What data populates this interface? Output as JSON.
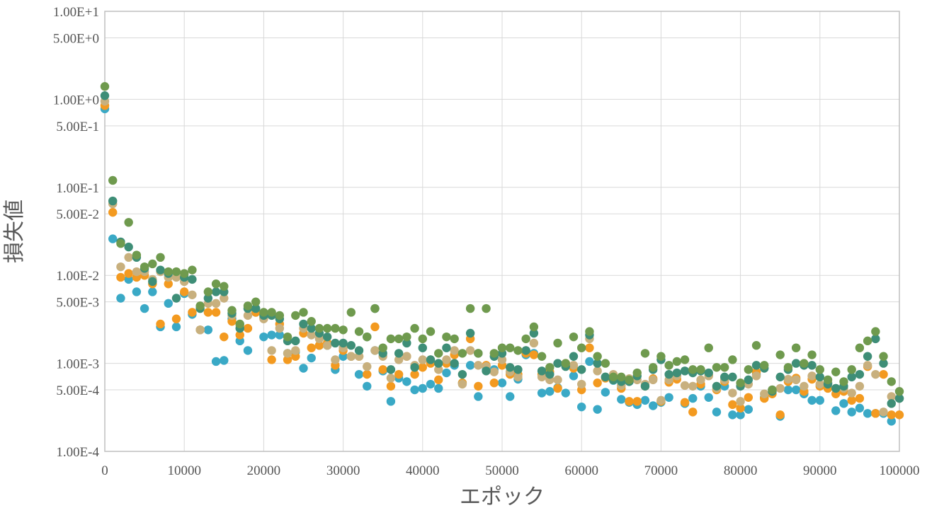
{
  "chart_data": {
    "type": "scatter",
    "xlabel": "エポック",
    "ylabel": "損失値",
    "xlim": [
      0,
      100000
    ],
    "ylim": [
      0.0001,
      10
    ],
    "yscale": "log",
    "grid": true,
    "legend": "none",
    "x_ticks": [
      "0",
      "10000",
      "20000",
      "30000",
      "40000",
      "50000",
      "60000",
      "70000",
      "80000",
      "90000",
      "100000"
    ],
    "y_ticks": [
      {
        "value": 10,
        "label": "1.00E+1"
      },
      {
        "value": 5,
        "label": "5.00E+0"
      },
      {
        "value": 1,
        "label": "1.00E+0"
      },
      {
        "value": 0.5,
        "label": "5.00E-1"
      },
      {
        "value": 0.1,
        "label": "1.00E-1"
      },
      {
        "value": 0.05,
        "label": "5.00E-2"
      },
      {
        "value": 0.01,
        "label": "1.00E-2"
      },
      {
        "value": 0.005,
        "label": "5.00E-3"
      },
      {
        "value": 0.001,
        "label": "1.00E-3"
      },
      {
        "value": 0.0005,
        "label": "5.00E-4"
      },
      {
        "value": 0.0001,
        "label": "1.00E-4"
      }
    ],
    "x": [
      0,
      1000,
      2000,
      3000,
      4000,
      5000,
      6000,
      7000,
      8000,
      9000,
      10000,
      11000,
      12000,
      13000,
      14000,
      15000,
      16000,
      17000,
      18000,
      19000,
      20000,
      21000,
      22000,
      23000,
      24000,
      25000,
      26000,
      27000,
      28000,
      29000,
      30000,
      31000,
      32000,
      33000,
      34000,
      35000,
      36000,
      37000,
      38000,
      39000,
      40000,
      41000,
      42000,
      43000,
      44000,
      45000,
      46000,
      47000,
      48000,
      49000,
      50000,
      51000,
      52000,
      53000,
      54000,
      55000,
      56000,
      57000,
      58000,
      59000,
      60000,
      61000,
      62000,
      63000,
      64000,
      65000,
      66000,
      67000,
      68000,
      69000,
      70000,
      71000,
      72000,
      73000,
      74000,
      75000,
      76000,
      77000,
      78000,
      79000,
      80000,
      81000,
      82000,
      83000,
      84000,
      85000,
      86000,
      87000,
      88000,
      89000,
      90000,
      91000,
      92000,
      93000,
      94000,
      95000,
      96000,
      97000,
      98000,
      99000,
      100000
    ],
    "series": [
      {
        "color": "#3aa9c6",
        "values": [
          0.78,
          0.026,
          0.0055,
          0.009,
          0.0065,
          0.0042,
          0.0065,
          0.0026,
          0.0048,
          0.0026,
          0.0062,
          0.0036,
          0.0024,
          0.0024,
          0.00105,
          0.00108,
          0.0032,
          0.0018,
          0.0014,
          0.0038,
          0.002,
          0.0021,
          0.0021,
          0.0013,
          0.00135,
          0.00088,
          0.00115,
          0.0016,
          0.0016,
          0.00085,
          0.0012,
          0.0012,
          0.00075,
          0.00055,
          0.0014,
          0.00082,
          0.00037,
          0.00068,
          0.00062,
          0.0005,
          0.00052,
          0.00058,
          0.00052,
          0.00078,
          0.00095,
          0.0006,
          0.00095,
          0.00042,
          0.00085,
          0.00085,
          0.0006,
          0.00042,
          0.00066,
          0.00125,
          0.0013,
          0.00046,
          0.00048,
          0.00053,
          0.00046,
          0.00072,
          0.00032,
          0.00105,
          0.0003,
          0.00047,
          0.00064,
          0.00039,
          0.00036,
          0.00034,
          0.00038,
          0.00033,
          0.00036,
          0.00041,
          0.00075,
          0.00035,
          0.0004,
          0.00055,
          0.00041,
          0.00028,
          0.00055,
          0.00026,
          0.00026,
          0.0003,
          0.00075,
          0.00041,
          0.0005,
          0.00025,
          0.0005,
          0.0005,
          0.00045,
          0.00038,
          0.00038,
          0.0006,
          0.00029,
          0.00035,
          0.00028,
          0.00031,
          0.00027,
          0.00027,
          0.00027,
          0.00022,
          0.0004
        ]
      },
      {
        "color": "#f39a20",
        "values": [
          0.85,
          0.052,
          0.0095,
          0.0105,
          0.0095,
          0.01,
          0.008,
          0.0028,
          0.008,
          0.0032,
          0.0065,
          0.0038,
          0.0024,
          0.0038,
          0.0038,
          0.002,
          0.003,
          0.0021,
          0.0025,
          0.0038,
          0.0033,
          0.0011,
          0.0028,
          0.0011,
          0.0012,
          0.0022,
          0.0015,
          0.0016,
          0.0017,
          0.00095,
          0.0014,
          0.0012,
          0.0012,
          0.00075,
          0.0026,
          0.00085,
          0.00055,
          0.00075,
          0.0012,
          0.00075,
          0.0009,
          0.001,
          0.00065,
          0.001,
          0.00125,
          0.0006,
          0.0019,
          0.00055,
          0.00095,
          0.0006,
          0.00095,
          0.00075,
          0.00075,
          0.0013,
          0.00125,
          0.00075,
          0.0008,
          0.00052,
          0.001,
          0.00088,
          0.0005,
          0.0015,
          0.0006,
          0.00068,
          0.00065,
          0.00052,
          0.00037,
          0.00037,
          0.00055,
          0.00067,
          0.00037,
          0.00061,
          0.00066,
          0.00036,
          0.00028,
          0.00058,
          0.00073,
          0.0005,
          0.00062,
          0.00034,
          0.00031,
          0.00041,
          0.0008,
          0.0004,
          0.00045,
          0.00026,
          0.00062,
          0.00068,
          0.00048,
          0.00066,
          0.00055,
          0.00052,
          0.00045,
          0.00048,
          0.00038,
          0.0004,
          0.00092,
          0.00027,
          0.00075,
          0.00026,
          0.00026
        ]
      },
      {
        "color": "#c8b07e",
        "values": [
          0.95,
          0.065,
          0.0125,
          0.016,
          0.011,
          0.011,
          0.009,
          0.011,
          0.0095,
          0.0095,
          0.0085,
          0.006,
          0.0024,
          0.0048,
          0.0048,
          0.0055,
          0.0035,
          0.0027,
          0.0035,
          0.0042,
          0.0032,
          0.0014,
          0.0025,
          0.0013,
          0.0014,
          0.0025,
          0.0021,
          0.0019,
          0.0016,
          0.0011,
          0.0015,
          0.0012,
          0.0012,
          0.00092,
          0.0014,
          0.0012,
          0.00068,
          0.0011,
          0.0012,
          0.00095,
          0.0011,
          0.0011,
          0.00085,
          0.0011,
          0.0014,
          0.00058,
          0.0014,
          0.00095,
          0.00092,
          0.0008,
          0.0011,
          0.0008,
          0.0007,
          0.0014,
          0.0017,
          0.0007,
          0.00065,
          0.00065,
          0.00095,
          0.00095,
          0.00058,
          0.0019,
          0.00082,
          0.0007,
          0.00075,
          0.00056,
          0.00067,
          0.00065,
          0.00058,
          0.00065,
          0.00038,
          0.00065,
          0.00072,
          0.00056,
          0.00055,
          0.00065,
          0.00072,
          0.00052,
          0.00065,
          0.00046,
          0.00037,
          0.00058,
          0.00072,
          0.00045,
          0.0005,
          0.00052,
          0.00066,
          0.00065,
          0.00055,
          0.00072,
          0.00058,
          0.0006,
          0.00052,
          0.00052,
          0.00046,
          0.00055,
          0.00095,
          0.00075,
          0.00028,
          0.00042,
          0.0004
        ]
      },
      {
        "color": "#3e8e77",
        "values": [
          1.1,
          0.07,
          0.024,
          0.021,
          0.016,
          0.012,
          0.0085,
          0.0115,
          0.0105,
          0.0055,
          0.0095,
          0.009,
          0.0042,
          0.0055,
          0.0065,
          0.0065,
          0.0037,
          0.0025,
          0.0042,
          0.0042,
          0.0035,
          0.0035,
          0.0032,
          0.0018,
          0.0018,
          0.0028,
          0.0025,
          0.0022,
          0.002,
          0.0017,
          0.0017,
          0.0016,
          0.0014,
          0.002,
          0.0042,
          0.0013,
          0.00085,
          0.0013,
          0.0017,
          0.0009,
          0.0015,
          0.0011,
          0.001,
          0.0015,
          0.001,
          0.00075,
          0.0022,
          0.0013,
          0.00082,
          0.0012,
          0.0013,
          0.0009,
          0.00085,
          0.0014,
          0.0022,
          0.00082,
          0.00075,
          0.001,
          0.00092,
          0.0012,
          0.00085,
          0.0021,
          0.001,
          0.0007,
          0.00065,
          0.00062,
          0.00062,
          0.00072,
          0.00055,
          0.00085,
          0.0011,
          0.00075,
          0.00078,
          0.00082,
          0.00078,
          0.00082,
          0.00078,
          0.00055,
          0.0007,
          0.0007,
          0.00055,
          0.00065,
          0.00095,
          0.00088,
          0.00048,
          0.0007,
          0.00085,
          0.001,
          0.00095,
          0.00095,
          0.0007,
          0.00058,
          0.00052,
          0.00055,
          0.0007,
          0.00075,
          0.0012,
          0.0019,
          0.001,
          0.00035,
          0.0004
        ]
      },
      {
        "color": "#6f9a4e",
        "values": [
          1.4,
          0.12,
          0.023,
          0.04,
          0.017,
          0.0125,
          0.0135,
          0.016,
          0.011,
          0.011,
          0.0105,
          0.0115,
          0.0045,
          0.0065,
          0.008,
          0.0075,
          0.004,
          0.0028,
          0.0045,
          0.005,
          0.0038,
          0.0038,
          0.0035,
          0.002,
          0.0035,
          0.0038,
          0.003,
          0.0025,
          0.0025,
          0.0025,
          0.0024,
          0.0038,
          0.0023,
          0.002,
          0.0042,
          0.0015,
          0.0019,
          0.0019,
          0.002,
          0.0025,
          0.0019,
          0.0023,
          0.0013,
          0.002,
          0.0019,
          0.0013,
          0.0042,
          0.0013,
          0.0042,
          0.0013,
          0.0015,
          0.0015,
          0.0014,
          0.0019,
          0.0026,
          0.0012,
          0.0009,
          0.0017,
          0.001,
          0.002,
          0.0015,
          0.0023,
          0.0012,
          0.001,
          0.0007,
          0.0007,
          0.00065,
          0.00078,
          0.0013,
          0.0009,
          0.0012,
          0.00095,
          0.00105,
          0.0011,
          0.00085,
          0.00085,
          0.0015,
          0.0009,
          0.0009,
          0.0011,
          0.0006,
          0.00085,
          0.0016,
          0.00095,
          0.0005,
          0.00125,
          0.0009,
          0.0015,
          0.001,
          0.00125,
          0.00085,
          0.00065,
          0.0008,
          0.00062,
          0.00085,
          0.0015,
          0.0018,
          0.0023,
          0.0012,
          0.00062,
          0.00048
        ]
      }
    ]
  }
}
